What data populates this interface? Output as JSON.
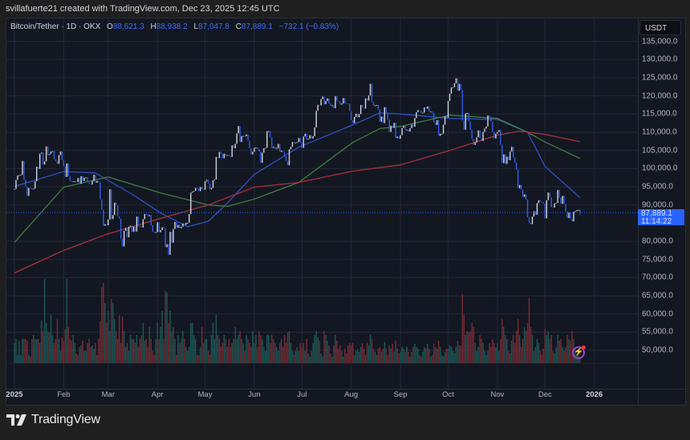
{
  "header": {
    "credit": "svillafuerte21 created with TradingView.com, Dec 23, 2025 12:45 UTC"
  },
  "legend": {
    "symbol": "Bitcoin/Tether · 1D · OKX",
    "o_label": "O",
    "o_value": "88,621.3",
    "h_label": "H",
    "h_value": "88,938.2",
    "l_label": "L",
    "l_value": "87,047.8",
    "c_label": "C",
    "c_value": "87,889.1",
    "change": "−732.1 (−0.83%)"
  },
  "price_axis": {
    "unit_button": "USDT",
    "current_price": "87,889.1",
    "countdown": "11:14:22"
  },
  "footer": {
    "brand": "TradingView"
  },
  "icons": {
    "alert": "lightning-icon",
    "logo": "tradingview-logo"
  },
  "colors": {
    "up_candle": "#d1d4dc",
    "down_candle": "#2f5fe8",
    "up_volume": "#1d5a57",
    "down_volume": "#7a2c33",
    "price_line": "#2962ff"
  },
  "chart_data": {
    "type": "candlestick",
    "interval": "1D",
    "start_date": "2025-01-01",
    "current_price": 87889.1,
    "last_candle": {
      "open": 88621.3,
      "high": 88938.2,
      "low": 87047.8,
      "close": 87889.1
    },
    "ylim": [
      39450,
      141300
    ],
    "y_ticks": [
      135000,
      130000,
      125000,
      120000,
      115000,
      110000,
      105000,
      100000,
      95000,
      90000,
      80000,
      75000,
      70000,
      65000,
      60000,
      55000,
      50000
    ],
    "x_ticks": [
      {
        "label": "2025",
        "date": "2025-01-01",
        "bold": true
      },
      {
        "label": "Feb",
        "date": "2025-02-01"
      },
      {
        "label": "Mar",
        "date": "2025-03-01"
      },
      {
        "label": "Apr",
        "date": "2025-04-01"
      },
      {
        "label": "May",
        "date": "2025-05-01"
      },
      {
        "label": "Jun",
        "date": "2025-06-01"
      },
      {
        "label": "Jul",
        "date": "2025-07-01"
      },
      {
        "label": "Aug",
        "date": "2025-08-01"
      },
      {
        "label": "Sep",
        "date": "2025-09-01"
      },
      {
        "label": "Oct",
        "date": "2025-10-01"
      },
      {
        "label": "Nov",
        "date": "2025-11-01"
      },
      {
        "label": "Dec",
        "date": "2025-12-01"
      },
      {
        "label": "2026",
        "date": "2026-01-01",
        "bold": true
      }
    ],
    "closes": [
      94400,
      96900,
      98100,
      98200,
      98300,
      102100,
      96900,
      95000,
      92500,
      94700,
      94600,
      94500,
      94500,
      96500,
      100500,
      99900,
      104100,
      104400,
      101100,
      102000,
      106100,
      103700,
      104000,
      104700,
      104800,
      102600,
      102100,
      101300,
      103700,
      104700,
      102400,
      100600,
      97700,
      101400,
      97900,
      96600,
      96500,
      96500,
      96500,
      96300,
      97400,
      95800,
      97900,
      96600,
      97500,
      97600,
      96200,
      95800,
      95600,
      96600,
      98300,
      96100,
      96600,
      96300,
      91500,
      88700,
      84300,
      84700,
      84400,
      86000,
      94300,
      86100,
      87200,
      90600,
      89900,
      86800,
      86200,
      80700,
      78600,
      82900,
      83700,
      81100,
      84000,
      84300,
      82600,
      84000,
      82700,
      86800,
      84200,
      84100,
      83800,
      86100,
      87500,
      87400,
      86900,
      87200,
      84400,
      82600,
      82400,
      82500,
      85200,
      82500,
      83100,
      83900,
      83500,
      78400,
      79200,
      76300,
      82600,
      79600,
      83400,
      85300,
      83700,
      84500,
      83600,
      84000,
      84900,
      84500,
      85100,
      85100,
      87500,
      93400,
      93700,
      93900,
      94700,
      94600,
      93800,
      94900,
      94300,
      94200,
      96500,
      96900,
      95900,
      94300,
      94700,
      96800,
      97000,
      103200,
      102900,
      104600,
      104100,
      102800,
      104100,
      103500,
      103700,
      103500,
      103200,
      106400,
      105600,
      106800,
      109700,
      111700,
      107300,
      108900,
      109000,
      108900,
      109400,
      107700,
      105600,
      103900,
      104600,
      105700,
      105800,
      105400,
      104700,
      101600,
      104400,
      105600,
      105700,
      110300,
      110300,
      108600,
      105700,
      106000,
      105500,
      105600,
      106800,
      104600,
      104900,
      104600,
      103300,
      102100,
      100900,
      105300,
      106000,
      107300,
      107100,
      107100,
      107300,
      108400,
      107200,
      105700,
      108800,
      109600,
      108000,
      108200,
      109200,
      108300,
      108900,
      111300,
      115900,
      117500,
      117400,
      119100,
      119800,
      117700,
      118600,
      119300,
      117900,
      117300,
      117400,
      116600,
      119900,
      118600,
      118400,
      117600,
      117900,
      119400,
      118000,
      117900,
      117800,
      115800,
      113300,
      112500,
      114200,
      115100,
      114100,
      115000,
      117500,
      116700,
      116500,
      119300,
      118700,
      120100,
      123300,
      118300,
      117400,
      117400,
      117500,
      116200,
      112900,
      114300,
      112500,
      116900,
      115400,
      113500,
      110100,
      111800,
      111200,
      112600,
      108400,
      108800,
      108200,
      109200,
      111200,
      111700,
      110700,
      110700,
      110200,
      111100,
      112100,
      111500,
      113900,
      115500,
      116100,
      115900,
      115300,
      115400,
      116800,
      116500,
      117100,
      115700,
      115700,
      115300,
      112700,
      112000,
      113300,
      109000,
      109600,
      109600,
      112100,
      114400,
      114000,
      118600,
      120600,
      122300,
      122400,
      123500,
      124800,
      121400,
      123300,
      121700,
      113200,
      110700,
      115200,
      115300,
      113000,
      110700,
      108200,
      106500,
      107200,
      108600,
      110500,
      108400,
      107600,
      110100,
      111000,
      111600,
      114600,
      114100,
      112900,
      110100,
      108300,
      109600,
      110100,
      110600,
      106600,
      101500,
      103900,
      101300,
      103300,
      102300,
      104700,
      106000,
      103100,
      101600,
      99700,
      94600,
      95500,
      94200,
      92200,
      92900,
      91500,
      86600,
      85100,
      84700,
      86800,
      88300,
      87300,
      90500,
      91300,
      90900,
      90800,
      90400,
      86300,
      91300,
      93400,
      92100,
      89400,
      89300,
      90400,
      90600,
      94100,
      92000,
      90300,
      92500,
      90300,
      88200,
      86400,
      87900,
      86200,
      85500,
      88100,
      88300,
      88600,
      88621.3,
      87889.1
    ],
    "volume_relative": [
      25,
      30,
      10,
      28,
      10,
      30,
      30,
      30,
      28,
      10,
      8,
      30,
      35,
      30,
      30,
      30,
      25,
      53,
      40,
      105,
      50,
      40,
      38,
      60,
      35,
      25,
      30,
      55,
      30,
      15,
      32,
      28,
      42,
      105,
      45,
      30,
      28,
      35,
      25,
      12,
      10,
      20,
      22,
      28,
      15,
      15,
      25,
      30,
      20,
      22,
      18,
      25,
      10,
      30,
      52,
      95,
      100,
      75,
      50,
      65,
      40,
      80,
      75,
      55,
      40,
      30,
      60,
      25,
      58,
      40,
      20,
      25,
      15,
      35,
      30,
      30,
      25,
      35,
      20,
      30,
      35,
      50,
      28,
      30,
      20,
      45,
      30,
      15,
      10,
      30,
      50,
      30,
      45,
      65,
      30,
      90,
      88,
      50,
      65,
      40,
      45,
      30,
      10,
      35,
      25,
      30,
      40,
      30,
      20,
      15,
      20,
      50,
      50,
      35,
      30,
      10,
      10,
      20,
      45,
      25,
      30,
      30,
      15,
      10,
      35,
      50,
      30,
      60,
      35,
      30,
      20,
      25,
      35,
      30,
      20,
      30,
      20,
      25,
      30,
      45,
      30,
      35,
      40,
      30,
      25,
      15,
      35,
      30,
      25,
      20,
      40,
      25,
      35,
      20,
      40,
      35,
      30,
      20,
      15,
      35,
      35,
      25,
      35,
      30,
      25,
      20,
      15,
      25,
      30,
      20,
      35,
      25,
      38,
      40,
      25,
      15,
      10,
      15,
      20,
      15,
      25,
      20,
      25,
      15,
      30,
      12,
      8,
      15,
      25,
      35,
      40,
      32,
      28,
      12,
      8,
      40,
      35,
      28,
      22,
      12,
      8,
      22,
      35,
      28,
      18,
      22,
      15,
      8,
      18,
      12,
      22,
      25,
      22,
      25,
      10,
      15,
      18,
      14,
      20,
      25,
      18,
      10,
      25,
      22,
      36,
      30,
      18,
      14,
      10,
      18,
      20,
      14,
      18,
      26,
      18,
      10,
      22,
      18,
      24,
      14,
      28,
      18,
      12,
      14,
      20,
      18,
      14,
      20,
      14,
      8,
      14,
      20,
      24,
      20,
      18,
      10,
      8,
      14,
      20,
      18,
      24,
      18,
      8,
      10,
      24,
      20,
      18,
      28,
      20,
      10,
      8,
      14,
      18,
      18,
      22,
      20,
      15,
      12,
      20,
      28,
      22,
      22,
      86,
      60,
      35,
      40,
      38,
      40,
      50,
      45,
      25,
      15,
      20,
      35,
      30,
      25,
      15,
      10,
      15,
      25,
      20,
      30,
      25,
      20,
      25,
      15,
      30,
      55,
      45,
      35,
      30,
      15,
      12,
      28,
      35,
      25,
      40,
      55,
      35,
      20,
      30,
      45,
      40,
      50,
      81,
      45,
      35,
      15,
      20,
      30,
      25,
      15,
      10,
      18,
      43,
      35,
      40,
      30,
      35,
      15,
      12,
      20,
      35,
      28,
      30,
      20,
      15,
      20,
      35,
      30,
      28,
      40,
      30,
      18,
      10,
      12,
      8
    ],
    "moving_averages": [
      {
        "color": "#2f4fc0",
        "points": [
          [
            "2025-01-01",
            95100
          ],
          [
            "2025-02-01",
            99200
          ],
          [
            "2025-02-21",
            98800
          ],
          [
            "2025-03-17",
            92700
          ],
          [
            "2025-04-03",
            87800
          ],
          [
            "2025-04-20",
            84000
          ],
          [
            "2025-05-03",
            85500
          ],
          [
            "2025-05-15",
            90500
          ],
          [
            "2025-06-01",
            98400
          ],
          [
            "2025-06-29",
            105900
          ],
          [
            "2025-08-02",
            112000
          ],
          [
            "2025-08-19",
            115300
          ],
          [
            "2025-09-01",
            115000
          ],
          [
            "2025-10-02",
            113800
          ],
          [
            "2025-11-01",
            113500
          ],
          [
            "2025-11-20",
            110000
          ],
          [
            "2025-12-01",
            100600
          ],
          [
            "2025-12-23",
            92000
          ]
        ]
      },
      {
        "color": "#3f7d3c",
        "points": [
          [
            "2025-01-01",
            79700
          ],
          [
            "2025-02-01",
            94900
          ],
          [
            "2025-03-01",
            97700
          ],
          [
            "2025-04-03",
            93300
          ],
          [
            "2025-05-03",
            90000
          ],
          [
            "2025-05-15",
            89600
          ],
          [
            "2025-06-01",
            91600
          ],
          [
            "2025-06-29",
            96200
          ],
          [
            "2025-08-02",
            107200
          ],
          [
            "2025-08-19",
            111000
          ],
          [
            "2025-09-01",
            111600
          ],
          [
            "2025-10-02",
            114700
          ],
          [
            "2025-11-01",
            113800
          ],
          [
            "2025-11-20",
            110000
          ],
          [
            "2025-12-01",
            107300
          ],
          [
            "2025-12-23",
            102800
          ]
        ]
      },
      {
        "color": "#a8303a",
        "points": [
          [
            "2025-01-01",
            71300
          ],
          [
            "2025-02-01",
            77500
          ],
          [
            "2025-02-28",
            81900
          ],
          [
            "2025-04-03",
            86300
          ],
          [
            "2025-05-03",
            90000
          ],
          [
            "2025-06-01",
            94900
          ],
          [
            "2025-06-29",
            96200
          ],
          [
            "2025-08-02",
            99300
          ],
          [
            "2025-09-01",
            101000
          ],
          [
            "2025-10-02",
            105000
          ],
          [
            "2025-11-01",
            109200
          ],
          [
            "2025-11-15",
            110300
          ],
          [
            "2025-12-01",
            109400
          ],
          [
            "2025-12-23",
            107400
          ]
        ]
      }
    ]
  }
}
